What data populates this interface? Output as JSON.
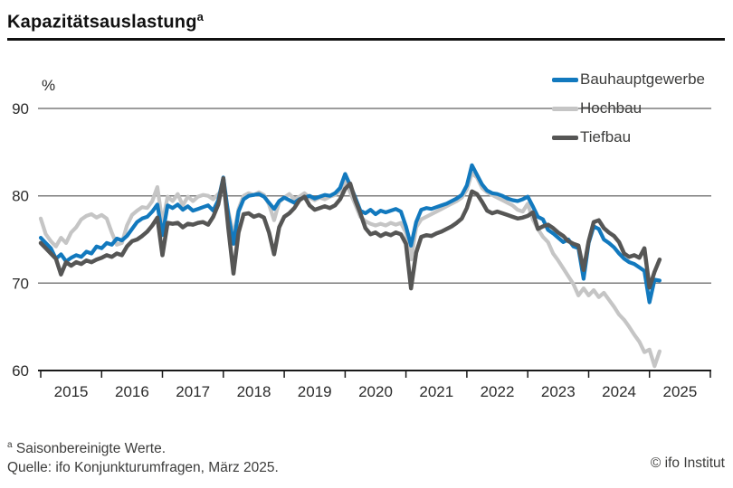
{
  "header": {
    "title": "Kapazitätsauslastung",
    "title_superscript": "a"
  },
  "legend": [
    {
      "label": "Bauhauptgewerbe",
      "color": "#1279be"
    },
    {
      "label": "Hochbau",
      "color": "#c5c5c5"
    },
    {
      "label": "Tiefbau",
      "color": "#565655"
    }
  ],
  "footer": {
    "footnote_marker": "a",
    "footnote": "Saisonbereinigte Werte.",
    "source": "Quelle: ifo Konjunkturumfragen, März 2025.",
    "copyright": "© ifo Institut"
  },
  "chart_data": {
    "type": "line",
    "unit": "%",
    "frequency": "monthly",
    "x_start": "2015-01",
    "x_end": "2025-03",
    "x_tick_years": [
      "2015",
      "2016",
      "2017",
      "2018",
      "2019",
      "2020",
      "2021",
      "2022",
      "2023",
      "2024",
      "2025"
    ],
    "y_tick_labels": [
      "60",
      "70",
      "80",
      "90"
    ],
    "y_grid_values": [
      70,
      80,
      90
    ],
    "ylim": [
      60,
      90
    ],
    "grid": "horizontal",
    "legend_position": "top-right",
    "axis_color": "#1a1a1a",
    "grid_color": "#7c7c7c",
    "series": [
      {
        "name": "Bauhauptgewerbe",
        "color": "#1279be",
        "width": 4.2,
        "values": [
          75.2,
          74.6,
          74.0,
          72.8,
          73.3,
          72.5,
          72.9,
          73.2,
          73.0,
          73.6,
          73.4,
          74.2,
          74.0,
          74.6,
          74.4,
          75.1,
          74.9,
          75.4,
          76.2,
          77.0,
          77.4,
          77.6,
          78.2,
          79.0,
          75.5,
          78.9,
          78.6,
          79.0,
          78.4,
          78.8,
          78.3,
          78.5,
          78.7,
          78.9,
          78.3,
          79.5,
          82.1,
          77.8,
          74.5,
          78.2,
          79.6,
          80.0,
          80.1,
          80.2,
          79.9,
          79.2,
          78.5,
          79.4,
          79.8,
          79.5,
          79.2,
          79.6,
          79.8,
          80.0,
          79.7,
          79.9,
          80.1,
          80.0,
          80.3,
          80.9,
          82.5,
          81.2,
          79.8,
          78.3,
          78.0,
          78.4,
          77.9,
          78.3,
          78.1,
          78.3,
          78.5,
          78.2,
          76.5,
          74.3,
          77.0,
          78.4,
          78.6,
          78.5,
          78.7,
          78.9,
          79.1,
          79.4,
          79.7,
          80.1,
          81.2,
          83.5,
          82.4,
          81.3,
          80.6,
          80.3,
          80.2,
          80.0,
          79.7,
          79.5,
          79.4,
          79.6,
          79.9,
          78.8,
          77.6,
          77.3,
          76.1,
          75.7,
          75.2,
          74.7,
          75.0,
          74.2,
          74.0,
          70.5,
          74.6,
          76.5,
          76.2,
          75.0,
          74.6,
          74.1,
          73.4,
          72.8,
          72.4,
          72.2,
          71.8,
          71.4,
          67.8,
          70.4,
          70.3
        ]
      },
      {
        "name": "Hochbau",
        "color": "#c5c5c5",
        "width": 4.2,
        "values": [
          77.4,
          75.6,
          74.8,
          74.2,
          75.2,
          74.6,
          75.8,
          76.4,
          77.3,
          77.7,
          77.9,
          77.5,
          77.8,
          77.4,
          75.8,
          74.4,
          74.6,
          76.6,
          77.8,
          78.3,
          78.7,
          78.6,
          79.4,
          81.0,
          76.9,
          79.9,
          79.4,
          80.2,
          78.9,
          79.9,
          79.4,
          79.9,
          80.1,
          80.0,
          79.6,
          80.2,
          80.8,
          78.2,
          75.4,
          78.5,
          80.0,
          80.3,
          80.1,
          80.4,
          80.1,
          79.0,
          77.2,
          79.3,
          79.8,
          80.2,
          79.6,
          79.9,
          80.3,
          79.8,
          79.5,
          79.8,
          79.6,
          79.9,
          80.1,
          80.6,
          81.7,
          80.4,
          79.0,
          77.6,
          77.1,
          76.8,
          76.6,
          76.8,
          76.6,
          76.9,
          76.7,
          76.9,
          75.8,
          72.7,
          76.4,
          77.3,
          77.6,
          77.9,
          78.2,
          78.5,
          78.8,
          79.1,
          79.4,
          79.8,
          80.7,
          82.6,
          82.1,
          80.9,
          80.4,
          80.1,
          79.8,
          79.5,
          79.2,
          78.9,
          78.4,
          78.2,
          79.1,
          77.3,
          76.2,
          75.3,
          74.7,
          73.4,
          72.6,
          71.7,
          70.8,
          69.9,
          68.6,
          69.4,
          68.6,
          69.2,
          68.4,
          68.9,
          68.1,
          67.3,
          66.4,
          65.8,
          65.0,
          64.1,
          63.3,
          62.1,
          62.4,
          60.5,
          62.2
        ]
      },
      {
        "name": "Tiefbau",
        "color": "#565655",
        "width": 4.5,
        "values": [
          74.6,
          74.0,
          73.4,
          72.8,
          71.0,
          72.4,
          72.0,
          72.4,
          72.2,
          72.6,
          72.4,
          72.7,
          72.9,
          73.2,
          73.0,
          73.4,
          73.2,
          74.2,
          74.8,
          75.0,
          75.4,
          75.9,
          76.6,
          77.5,
          73.2,
          76.9,
          76.8,
          76.9,
          76.4,
          76.8,
          76.7,
          76.9,
          77.0,
          76.7,
          77.6,
          79.0,
          82.0,
          76.2,
          71.1,
          75.8,
          77.9,
          78.0,
          77.6,
          77.8,
          77.5,
          75.8,
          73.3,
          76.4,
          77.6,
          78.0,
          78.6,
          79.5,
          79.9,
          78.9,
          78.4,
          78.6,
          78.8,
          78.6,
          78.9,
          79.6,
          80.8,
          81.4,
          79.5,
          78.0,
          76.3,
          75.6,
          75.8,
          75.4,
          75.7,
          75.5,
          75.8,
          75.6,
          74.5,
          69.4,
          73.5,
          75.3,
          75.5,
          75.4,
          75.7,
          75.9,
          76.2,
          76.5,
          76.9,
          77.4,
          78.6,
          80.5,
          80.2,
          79.3,
          78.3,
          78.0,
          78.2,
          78.0,
          77.8,
          77.6,
          77.4,
          77.5,
          77.7,
          78.1,
          76.2,
          76.5,
          76.7,
          76.3,
          75.8,
          75.4,
          74.8,
          74.5,
          74.3,
          71.5,
          74.8,
          77.0,
          77.2,
          76.3,
          75.8,
          75.4,
          74.7,
          73.4,
          73.0,
          73.2,
          72.9,
          74.0,
          69.5,
          71.3,
          72.7
        ]
      }
    ]
  }
}
